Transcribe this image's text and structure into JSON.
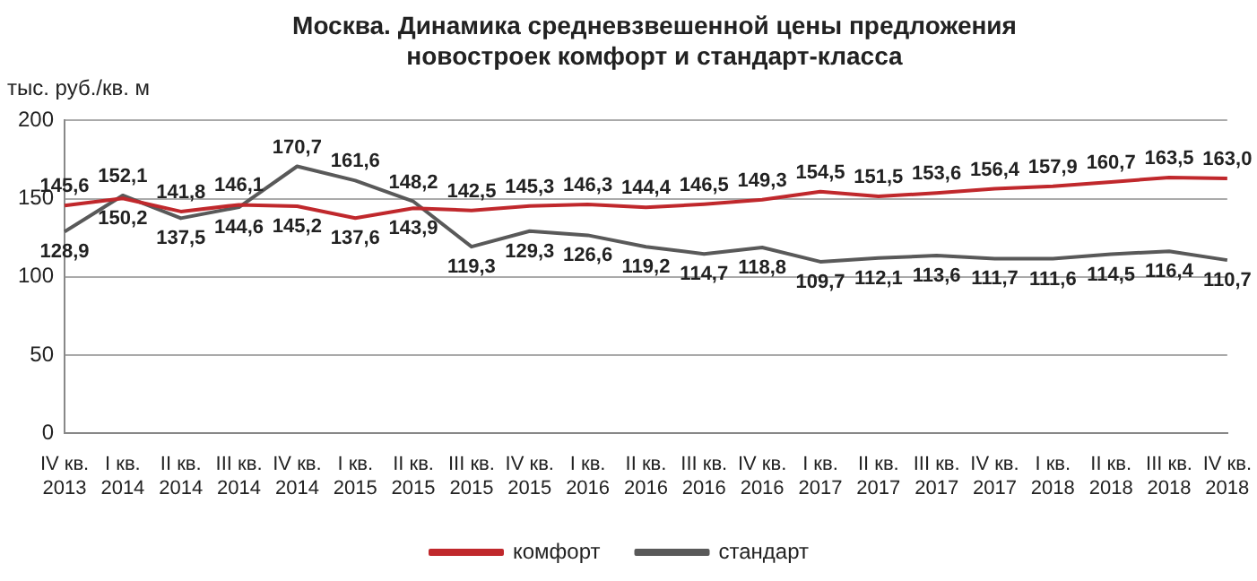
{
  "chart_data": {
    "type": "line",
    "title": "Москва. Динамика средневзвешенной цены предложения новостроек комфорт и стандарт-класса",
    "ylabel": "тыс. руб./кв. м",
    "categories": [
      "IV кв. 2013",
      "I кв. 2014",
      "II кв. 2014",
      "III кв. 2014",
      "IV кв. 2014",
      "I кв. 2015",
      "II кв. 2015",
      "III кв. 2015",
      "IV кв. 2015",
      "I кв. 2016",
      "II кв. 2016",
      "III кв. 2016",
      "IV кв. 2016",
      "I кв. 2017",
      "II кв. 2017",
      "III кв. 2017",
      "IV кв. 2017",
      "I кв. 2018",
      "II кв. 2018",
      "III кв. 2018",
      "IV кв. 2018"
    ],
    "series": [
      {
        "name": "комфорт",
        "color": "#c0282c",
        "values": [
          145.6,
          150.2,
          141.8,
          146.1,
          145.2,
          137.6,
          143.9,
          142.5,
          145.3,
          146.3,
          144.4,
          146.5,
          149.3,
          154.5,
          151.5,
          153.6,
          156.4,
          157.9,
          160.7,
          163.5,
          163.0
        ],
        "value_labels": [
          "145,6",
          "150,2",
          "141,8",
          "146,1",
          "145,2",
          "137,6",
          "143,9",
          "142,5",
          "145,3",
          "146,3",
          "144,4",
          "146,5",
          "149,3",
          "154,5",
          "151,5",
          "153,6",
          "156,4",
          "157,9",
          "160,7",
          "163,5",
          "163,0"
        ]
      },
      {
        "name": "стандарт",
        "color": "#595959",
        "values": [
          128.9,
          152.1,
          137.5,
          144.6,
          170.7,
          161.6,
          148.2,
          119.3,
          129.3,
          126.6,
          119.2,
          114.7,
          118.8,
          109.7,
          112.1,
          113.6,
          111.7,
          111.6,
          114.5,
          116.4,
          110.7
        ],
        "value_labels": [
          "128,9",
          "152,1",
          "137,5",
          "144,6",
          "170,7",
          "161,6",
          "148,2",
          "119,3",
          "129,3",
          "126,6",
          "119,2",
          "114,7",
          "118,8",
          "109,7",
          "112,1",
          "113,6",
          "111,7",
          "111,6",
          "114,5",
          "116,4",
          "110,7"
        ]
      }
    ],
    "ylim": [
      0,
      200
    ],
    "yticks": [
      0,
      50,
      100,
      150,
      200
    ],
    "grid": "y",
    "legend": "bottom",
    "marker": "none",
    "line_style": "solid"
  }
}
